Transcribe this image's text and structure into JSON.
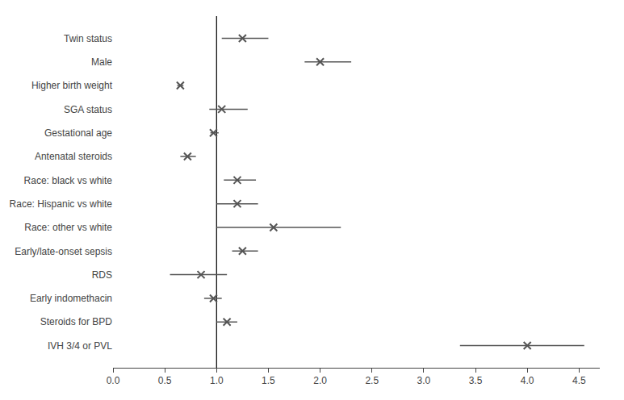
{
  "chart_data": {
    "type": "forest",
    "categories": [
      "Twin status",
      "Male",
      "Higher birth weight",
      "SGA status",
      "Gestational age",
      "Antenatal steroids",
      "Race: black vs white",
      "Race: Hispanic vs white",
      "Race: other vs white",
      "Early/late-onset sepsis",
      "RDS",
      "Early indomethacin",
      "Steroids for BPD",
      "IVH 3/4 or PVL"
    ],
    "values": [
      1.25,
      2.0,
      0.65,
      1.05,
      0.97,
      0.72,
      1.2,
      1.2,
      1.55,
      1.25,
      0.85,
      0.97,
      1.1,
      4.0
    ],
    "ci_lower": [
      1.05,
      1.85,
      0.62,
      0.93,
      0.94,
      0.65,
      1.07,
      1.0,
      1.0,
      1.15,
      0.55,
      0.88,
      1.0,
      3.35
    ],
    "ci_upper": [
      1.5,
      2.3,
      0.68,
      1.3,
      1.02,
      0.8,
      1.38,
      1.4,
      2.2,
      1.4,
      1.1,
      1.05,
      1.2,
      4.55
    ],
    "reference_line": 1.0,
    "xlim": [
      0.0,
      4.7
    ],
    "xticks": [
      {
        "value": 0.0,
        "label": "0.0"
      },
      0.5,
      {
        "value": 1.0,
        "label": "1.0"
      },
      1.5,
      {
        "value": 2.0,
        "label": "2.0"
      },
      2.5,
      {
        "value": 3.0,
        "label": "3.0"
      },
      3.5,
      {
        "value": 4.0,
        "label": "4.0"
      },
      4.5
    ],
    "color": "#555555",
    "marker": "x",
    "grid": false
  }
}
